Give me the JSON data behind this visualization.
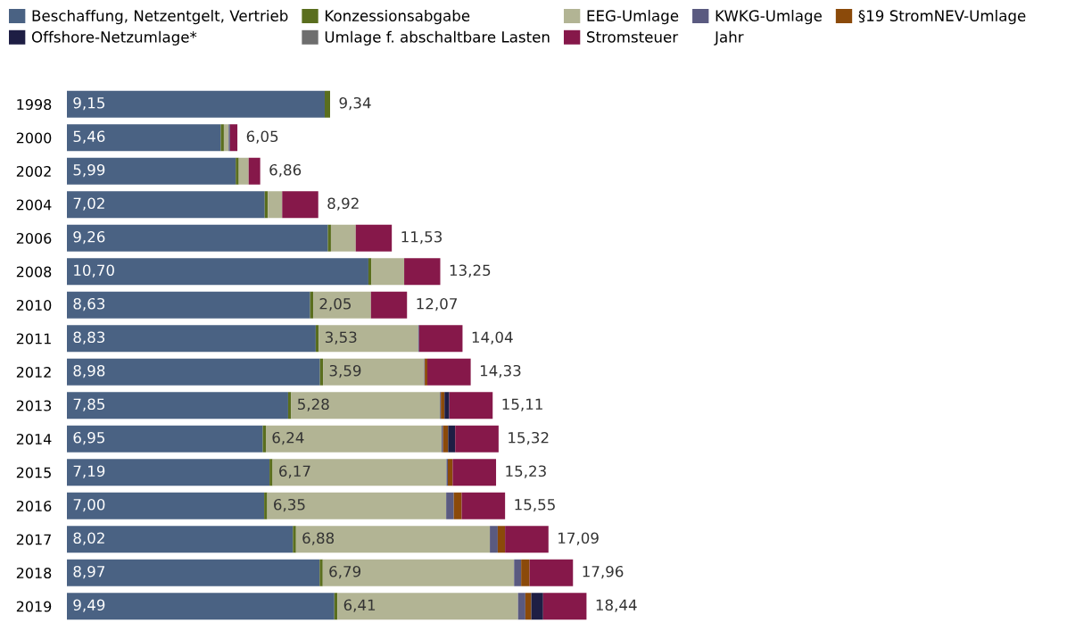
{
  "chart_data": {
    "type": "bar",
    "orientation": "horizontal",
    "stacked": true,
    "legend": "top",
    "annotations": [
      "Jahr"
    ],
    "categories": [
      "1998",
      "2000",
      "2002",
      "2004",
      "2006",
      "2008",
      "2010",
      "2011",
      "2012",
      "2013",
      "2014",
      "2015",
      "2016",
      "2017",
      "2018",
      "2019"
    ],
    "series": [
      {
        "name": "Beschaffung, Netzentgelt, Vertrieb",
        "color": "#4a6283",
        "values": [
          9.15,
          5.46,
          5.99,
          7.02,
          9.26,
          10.7,
          8.63,
          8.83,
          8.98,
          7.85,
          6.95,
          7.19,
          7.0,
          8.02,
          8.97,
          9.49
        ],
        "value_labels": [
          "9,15",
          "5,46",
          "5,99",
          "7,02",
          "9,26",
          "10,70",
          "8,63",
          "8,83",
          "8,98",
          "7,85",
          "6,95",
          "7,19",
          "7,00",
          "8,02",
          "8,97",
          "9,49"
        ]
      },
      {
        "name": "Konzessionsabgabe",
        "color": "#5a6e1e",
        "values": [
          0.19,
          0.11,
          0.11,
          0.11,
          0.11,
          0.11,
          0.11,
          0.11,
          0.11,
          0.11,
          0.11,
          0.11,
          0.11,
          0.11,
          0.11,
          0.11
        ]
      },
      {
        "name": "EEG-Umlage",
        "color": "#b2b494",
        "values": [
          0,
          0.17,
          0.35,
          0.51,
          0.88,
          1.16,
          2.05,
          3.53,
          3.59,
          5.28,
          6.24,
          6.17,
          6.35,
          6.88,
          6.79,
          6.41
        ],
        "value_labels": [
          null,
          null,
          null,
          null,
          null,
          null,
          "2,05",
          "3,53",
          "3,59",
          "5,28",
          "6,24",
          "6,17",
          "6,35",
          "6,88",
          "6,79",
          "6,41"
        ]
      },
      {
        "name": "KWKG-Umlage",
        "color": "#5a5a80",
        "values": [
          0,
          0.05,
          0,
          0,
          0,
          0,
          0,
          0.03,
          0.02,
          0.03,
          0.05,
          0.05,
          0.27,
          0.28,
          0.25,
          0.26
        ]
      },
      {
        "name": "§19 StromNEV-Umlage",
        "color": "#8b4a0a",
        "values": [
          0,
          0,
          0,
          0,
          0,
          0,
          0,
          0,
          0.09,
          0.13,
          0.18,
          0.17,
          0.28,
          0.26,
          0.3,
          0.21
        ]
      },
      {
        "name": "Offshore-Netzumlage*",
        "color": "#1e1e44",
        "values": [
          0,
          0,
          0,
          0,
          0,
          0,
          0,
          0,
          0,
          0.17,
          0.25,
          0,
          0,
          0,
          0,
          0.42
        ]
      },
      {
        "name": "Umlage f. abschaltbare Lasten",
        "color": "#6e6e6e",
        "values": [
          0,
          0,
          0,
          0,
          0,
          0,
          0,
          0,
          0,
          0,
          0,
          0,
          0,
          0,
          0,
          0
        ]
      },
      {
        "name": "Stromsteuer",
        "color": "#86184a",
        "values": [
          0,
          0.26,
          0.41,
          1.28,
          1.28,
          1.28,
          1.28,
          1.54,
          1.54,
          1.54,
          1.54,
          1.54,
          1.54,
          1.54,
          1.54,
          1.54
        ]
      }
    ],
    "totals": [
      "9,34",
      "6,05",
      "6,86",
      "8,92",
      "11,53",
      "13,25",
      "12,07",
      "14,04",
      "14,33",
      "15,11",
      "15,32",
      "15,23",
      "15,55",
      "17,09",
      "17,96",
      "18,44"
    ]
  }
}
